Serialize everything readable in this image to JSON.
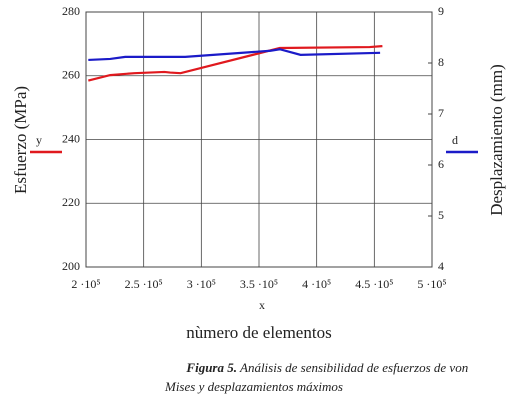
{
  "chart_data": {
    "type": "line",
    "xlabel": "x",
    "xlabel2": "nùmero de elementos",
    "ylabel": "Esfuerzo (MPa)",
    "y2label": "Desplazamiento (mm)",
    "xlim": [
      200000,
      500000
    ],
    "xticks": [
      {
        "value": 200000,
        "label": "2 ·10⁵"
      },
      {
        "value": 250000,
        "label": "2.5 ·10⁵"
      },
      {
        "value": 300000,
        "label": "3 ·10⁵"
      },
      {
        "value": 350000,
        "label": "3.5 ·10⁵"
      },
      {
        "value": 400000,
        "label": "4 ·10⁵"
      },
      {
        "value": 450000,
        "label": "4.5 ·10⁵"
      },
      {
        "value": 500000,
        "label": "5 ·10⁵"
      }
    ],
    "ylim": [
      200,
      280
    ],
    "yticks": [
      200,
      220,
      240,
      260,
      280
    ],
    "y2lim": [
      4,
      9
    ],
    "y2ticks": [
      4,
      5,
      6,
      7,
      8,
      9
    ],
    "grid": true,
    "series": [
      {
        "name": "y",
        "color": "#e0191e",
        "x": [
          202000,
          221000,
          242000,
          268000,
          273000,
          282000,
          368000,
          446000,
          457000
        ],
        "values": [
          258.5,
          260.2,
          260.8,
          261.2,
          261,
          260.8,
          268.7,
          269,
          269.3
        ]
      },
      {
        "name": "d",
        "color": "#1b1bc8",
        "axis": "y2",
        "x": [
          202000,
          221000,
          234000,
          286000,
          360000,
          368000,
          386000,
          455000
        ],
        "values": [
          8.06,
          8.08,
          8.12,
          8.12,
          8.24,
          8.27,
          8.16,
          8.2
        ]
      }
    ],
    "caption": {
      "label": "Figura 5.",
      "lines": [
        "Análisis de sensibilidad de esfuerzos de von",
        "Mises y desplazamientos máximos"
      ]
    }
  }
}
